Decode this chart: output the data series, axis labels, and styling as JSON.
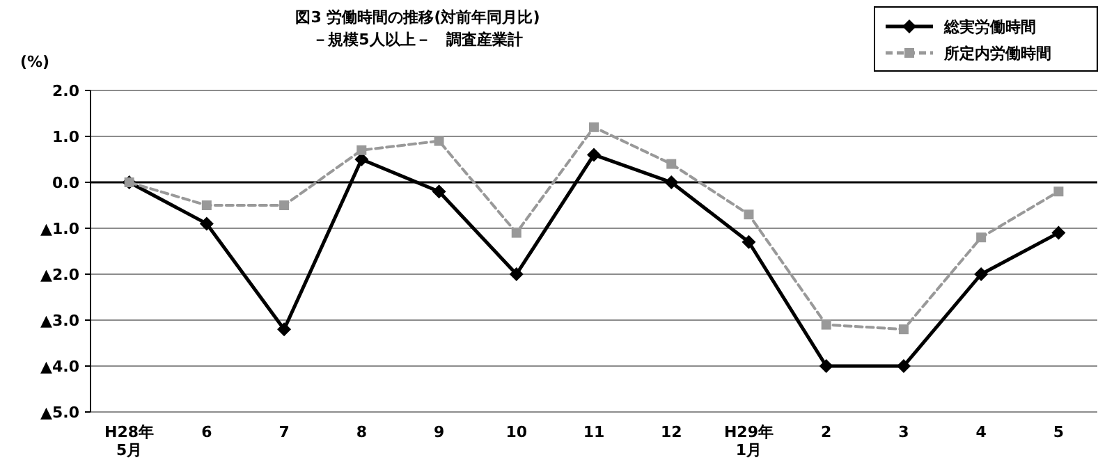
{
  "chart_data": {
    "type": "line",
    "title": "図3 労働時間の推移(対前年同月比)",
    "subtitle": "－規模5人以上－　調査産業計",
    "ylabel": "(%)",
    "categories": [
      "H28年\n5月",
      "6",
      "7",
      "8",
      "9",
      "10",
      "11",
      "12",
      "H29年\n1月",
      "2",
      "3",
      "4",
      "5"
    ],
    "series": [
      {
        "name": "総実労働時間",
        "color": "#000000",
        "marker": "diamond",
        "line_style": "solid",
        "values": [
          0.0,
          -0.9,
          -3.2,
          0.5,
          -0.2,
          -2.0,
          0.6,
          0.0,
          -1.3,
          -4.0,
          -4.0,
          -2.0,
          -1.1
        ]
      },
      {
        "name": "所定内労働時間",
        "color": "#999999",
        "marker": "square",
        "line_style": "dashed",
        "values": [
          0.0,
          -0.5,
          -0.5,
          0.7,
          0.9,
          -1.1,
          1.2,
          0.4,
          -0.7,
          -3.1,
          -3.2,
          -1.2,
          -0.2
        ]
      }
    ],
    "ylim": [
      -5.0,
      2.0
    ],
    "yticks": [
      {
        "value": 2.0,
        "label": "2.0"
      },
      {
        "value": 1.0,
        "label": "1.0"
      },
      {
        "value": 0.0,
        "label": "0.0"
      },
      {
        "value": -1.0,
        "label": "▲1.0"
      },
      {
        "value": -2.0,
        "label": "▲2.0"
      },
      {
        "value": -3.0,
        "label": "▲3.0"
      },
      {
        "value": -4.0,
        "label": "▲4.0"
      },
      {
        "value": -5.0,
        "label": "▲5.0"
      }
    ],
    "grid": "y",
    "legend": "top right"
  }
}
